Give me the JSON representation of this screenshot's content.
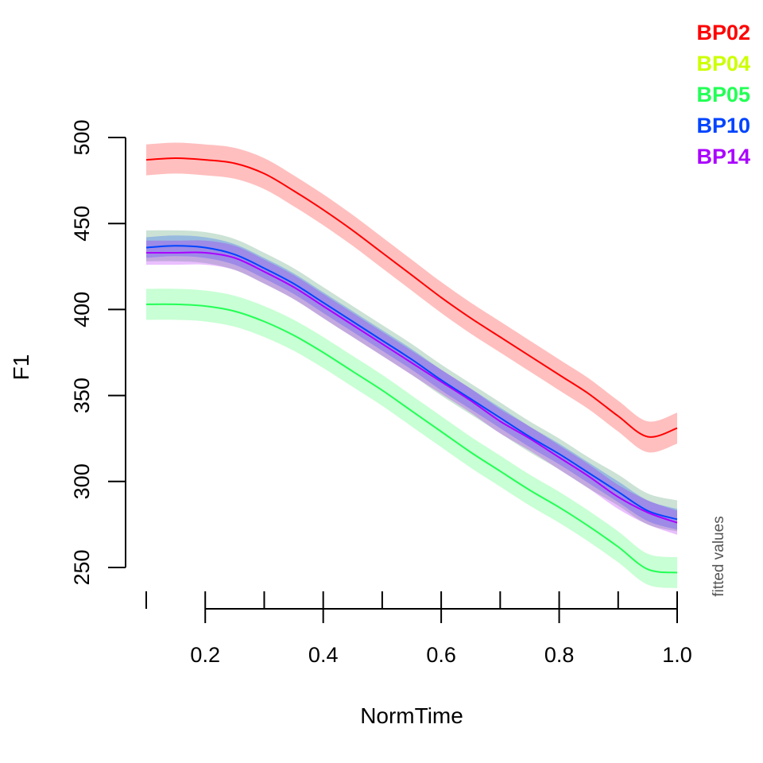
{
  "chart_data": {
    "type": "line",
    "xlabel": "NormTime",
    "ylabel": "F1",
    "side_label": "fitted values",
    "xlim": [
      0.1,
      1.0
    ],
    "ylim": [
      250,
      500
    ],
    "x_ticks": [
      0.1,
      0.2,
      0.3,
      0.4,
      0.5,
      0.6,
      0.7,
      0.8,
      0.9,
      1.0
    ],
    "x_tick_labels": [
      {
        "value": 0.2,
        "label": "0.2"
      },
      {
        "value": 0.4,
        "label": "0.4"
      },
      {
        "value": 0.6,
        "label": "0.6"
      },
      {
        "value": 0.8,
        "label": "0.8"
      },
      {
        "value": 1.0,
        "label": "1.0"
      }
    ],
    "y_ticks": [
      250,
      300,
      350,
      400,
      450,
      500
    ],
    "y_tick_labels": [
      "250",
      "300",
      "350",
      "400",
      "450",
      "500"
    ],
    "grid": false,
    "legend_position": "top-right",
    "x": [
      0.1,
      0.15,
      0.2,
      0.25,
      0.3,
      0.35,
      0.4,
      0.45,
      0.5,
      0.55,
      0.6,
      0.65,
      0.7,
      0.75,
      0.8,
      0.85,
      0.9,
      0.95,
      1.0
    ],
    "series": [
      {
        "name": "BP02",
        "color": "#ff0000",
        "band_color": "#ff0000",
        "band_half_width": 9,
        "values": [
          487,
          488,
          487,
          485,
          479,
          469,
          458,
          446,
          433,
          420,
          407,
          395,
          384,
          373,
          362,
          351,
          338,
          326,
          331
        ]
      },
      {
        "name": "BP04",
        "color": "#ccff00",
        "show_line": false,
        "band_color": "#2e8b57",
        "band_half_width": 9,
        "values": [
          437,
          437,
          436,
          432,
          424,
          415,
          404,
          393,
          382,
          371,
          359,
          348,
          337,
          326,
          316,
          305,
          295,
          284,
          280
        ]
      },
      {
        "name": "BP05",
        "color": "#22ff55",
        "band_color": "#22ff55",
        "band_half_width": 9,
        "values": [
          403,
          403,
          402,
          399,
          393,
          385,
          375,
          364,
          353,
          341,
          329,
          317,
          306,
          295,
          285,
          274,
          262,
          249,
          247
        ]
      },
      {
        "name": "BP10",
        "color": "#0044ff",
        "band_color": "#0044ff",
        "band_half_width": 6,
        "values": [
          436,
          437,
          436,
          432,
          424,
          415,
          404,
          393,
          382,
          371,
          359,
          348,
          337,
          326,
          316,
          305,
          294,
          283,
          278
        ]
      },
      {
        "name": "BP14",
        "color": "#aa00ff",
        "band_color": "#aa00ff",
        "band_half_width": 7,
        "values": [
          433,
          433,
          433,
          430,
          422,
          413,
          402,
          391,
          380,
          369,
          358,
          347,
          335,
          325,
          314,
          303,
          291,
          282,
          276
        ]
      }
    ]
  }
}
